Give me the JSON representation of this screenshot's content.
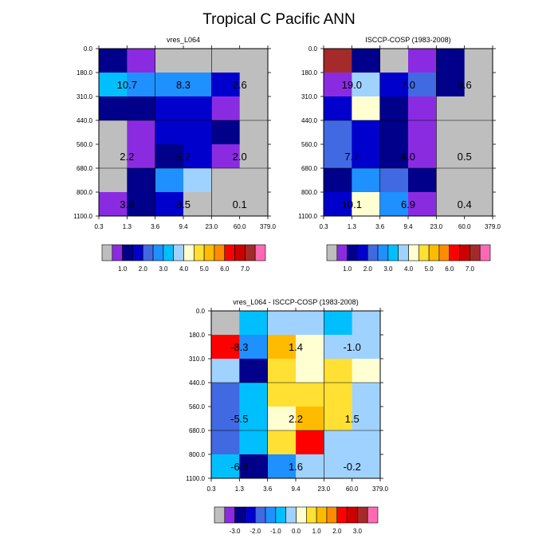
{
  "title": "Tropical C Pacific ANN",
  "colors": {
    "nodata": "#bebebe",
    "frame": "#000000",
    "grid": "#000000",
    "abs_palette": [
      "#bebebe",
      "#8a2be2",
      "#00008b",
      "#0000cd",
      "#4169e1",
      "#1e90ff",
      "#00bfff",
      "#a0d2ff",
      "#ffffd2",
      "#ffe033",
      "#ffbb00",
      "#ff8c00",
      "#ff0000",
      "#cd0000",
      "#a52a2a",
      "#ff69b4"
    ],
    "diff_palette": [
      "#bebebe",
      "#8a2be2",
      "#00008b",
      "#0000cd",
      "#4169e1",
      "#1e90ff",
      "#00bfff",
      "#a0d2ff",
      "#ffffd2",
      "#ffe033",
      "#ffbb00",
      "#ff8c00",
      "#ff0000",
      "#cd0000",
      "#a52a2a",
      "#ff69b4"
    ]
  },
  "chart_data": [
    {
      "type": "heatmap",
      "title": "vres_L064",
      "x_ticks": [
        "0.3",
        "1.3",
        "3.6",
        "9.4",
        "23.0",
        "60.0",
        "379.0"
      ],
      "y_ticks": [
        "0.0",
        "180.0",
        "310.0",
        "440.0",
        "560.0",
        "680.0",
        "800.0",
        "1100.0"
      ],
      "cells": [
        [
          2,
          1,
          0,
          0,
          0,
          0
        ],
        [
          6,
          5,
          5,
          5,
          3,
          0
        ],
        [
          2,
          2,
          3,
          3,
          1,
          0
        ],
        [
          0,
          1,
          3,
          3,
          2,
          0
        ],
        [
          0,
          1,
          2,
          3,
          1,
          0
        ],
        [
          0,
          2,
          5,
          7,
          0,
          0
        ],
        [
          1,
          2,
          3,
          0,
          0,
          0
        ]
      ],
      "annotations": [
        {
          "row": 1,
          "col": 0.5,
          "text": "10.7"
        },
        {
          "row": 1,
          "col": 2.5,
          "text": "8.3"
        },
        {
          "row": 1,
          "col": 4.5,
          "text": "2.6"
        },
        {
          "row": 4,
          "col": 0.5,
          "text": "2.2"
        },
        {
          "row": 4,
          "col": 2.5,
          "text": "5.2"
        },
        {
          "row": 4,
          "col": 4.5,
          "text": "2.0"
        },
        {
          "row": 6,
          "col": 0.5,
          "text": "3.6"
        },
        {
          "row": 6,
          "col": 2.5,
          "text": "8.5"
        },
        {
          "row": 6,
          "col": 4.5,
          "text": "0.1"
        }
      ]
    },
    {
      "type": "heatmap",
      "title": "ISCCP-COSP (1983-2008)",
      "x_ticks": [
        "0.3",
        "1.3",
        "3.6",
        "9.4",
        "23.0",
        "60.0",
        "379.0"
      ],
      "y_ticks": [
        "0.0",
        "180.0",
        "310.0",
        "440.0",
        "560.0",
        "680.0",
        "800.0",
        "1100.0"
      ],
      "cells": [
        [
          14,
          2,
          0,
          1,
          2,
          0
        ],
        [
          1,
          7,
          3,
          4,
          2,
          0
        ],
        [
          3,
          8,
          2,
          1,
          0,
          0
        ],
        [
          4,
          3,
          2,
          1,
          0,
          0
        ],
        [
          4,
          3,
          2,
          1,
          0,
          0
        ],
        [
          2,
          5,
          4,
          2,
          0,
          0
        ],
        [
          3,
          8,
          5,
          1,
          0,
          0
        ]
      ],
      "annotations": [
        {
          "row": 1,
          "col": 0.5,
          "text": "19.0"
        },
        {
          "row": 1,
          "col": 2.5,
          "text": "7.0"
        },
        {
          "row": 1,
          "col": 4.5,
          "text": "3.6"
        },
        {
          "row": 4,
          "col": 0.5,
          "text": "7.7"
        },
        {
          "row": 4,
          "col": 2.5,
          "text": "4.0"
        },
        {
          "row": 4,
          "col": 4.5,
          "text": "0.5"
        },
        {
          "row": 6,
          "col": 0.5,
          "text": "10.1"
        },
        {
          "row": 6,
          "col": 2.5,
          "text": "6.9"
        },
        {
          "row": 6,
          "col": 4.5,
          "text": "0.4"
        }
      ]
    },
    {
      "type": "heatmap",
      "title": "vres_L064 - ISCCP-COSP (1983-2008)",
      "x_ticks": [
        "0.3",
        "1.3",
        "3.6",
        "9.4",
        "23.0",
        "60.0",
        "379.0"
      ],
      "y_ticks": [
        "0.0",
        "180.0",
        "310.0",
        "440.0",
        "560.0",
        "680.0",
        "800.0",
        "1100.0"
      ],
      "cells": [
        [
          0,
          6,
          7,
          7,
          6,
          7
        ],
        [
          12,
          5,
          10,
          8,
          7,
          7
        ],
        [
          7,
          2,
          9,
          8,
          9,
          8
        ],
        [
          4,
          6,
          9,
          9,
          9,
          7
        ],
        [
          4,
          6,
          8,
          10,
          9,
          7
        ],
        [
          4,
          6,
          9,
          12,
          7,
          7
        ],
        [
          6,
          2,
          5,
          7,
          7,
          7
        ]
      ],
      "annotations": [
        {
          "row": 1,
          "col": 0.5,
          "text": "-8.3"
        },
        {
          "row": 1,
          "col": 2.5,
          "text": "1.4"
        },
        {
          "row": 1,
          "col": 4.5,
          "text": "-1.0"
        },
        {
          "row": 4,
          "col": 0.5,
          "text": "-5.5"
        },
        {
          "row": 4,
          "col": 2.5,
          "text": "2.2"
        },
        {
          "row": 4,
          "col": 4.5,
          "text": "1.5"
        },
        {
          "row": 6,
          "col": 0.5,
          "text": "-6.3"
        },
        {
          "row": 6,
          "col": 2.5,
          "text": "1.6"
        },
        {
          "row": 6,
          "col": 4.5,
          "text": "-0.2"
        }
      ]
    }
  ],
  "colorbars": [
    {
      "palette": "abs_palette",
      "labels": [
        "1.0",
        "2.0",
        "3.0",
        "4.0",
        "5.0",
        "6.0",
        "7.0"
      ]
    },
    {
      "palette": "abs_palette",
      "labels": [
        "1.0",
        "2.0",
        "3.0",
        "4.0",
        "5.0",
        "6.0",
        "7.0"
      ]
    },
    {
      "palette": "diff_palette",
      "labels": [
        "-3.0",
        "-2.0",
        "-1.0",
        "0.0",
        "1.0",
        "2.0",
        "3.0"
      ]
    }
  ]
}
